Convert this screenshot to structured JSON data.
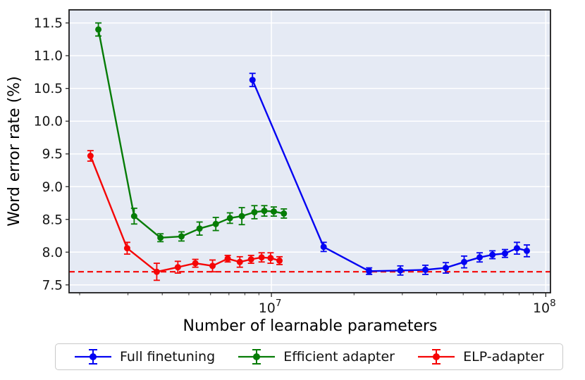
{
  "figure": {
    "ylabel": "Word error rate (%)",
    "xlabel": "Number of learnable parameters"
  },
  "legend": {
    "items": [
      {
        "label": "Full finetuning",
        "color": "#0404f2"
      },
      {
        "label": "Efficient adapter",
        "color": "#067c06"
      },
      {
        "label": "ELP-adapter",
        "color": "#f50505"
      }
    ]
  },
  "chart_data": {
    "type": "line",
    "x_scale": "log",
    "title": "",
    "xlabel": "Number of learnable parameters",
    "ylabel": "Word error rate (%)",
    "xlim": [
      1830000,
      104000000
    ],
    "ylim": [
      7.38,
      11.7
    ],
    "y_ticks": [
      7.5,
      8.0,
      8.5,
      9.0,
      9.5,
      10.0,
      10.5,
      11.0,
      11.5
    ],
    "x_major_ticks": [
      {
        "value": 10000000,
        "base": "10",
        "exp": "7"
      },
      {
        "value": 100000000,
        "base": "10",
        "exp": "8"
      }
    ],
    "x_minor_tick_decades": [
      1000000,
      10000000,
      100000000
    ],
    "grid": true,
    "plot_background": "#e5eaf4",
    "gridline_color": "#ffffff",
    "baseline": {
      "y": 7.7,
      "color": "#f50505",
      "style": "dashed"
    },
    "series": [
      {
        "name": "Full finetuning",
        "color": "#0404f2",
        "x": [
          8530000,
          15500000,
          22700000,
          29500000,
          36400000,
          43200000,
          50400000,
          57400000,
          63900000,
          71000000,
          78500000,
          85300000
        ],
        "y": [
          10.63,
          8.08,
          7.71,
          7.72,
          7.73,
          7.76,
          7.85,
          7.92,
          7.96,
          7.98,
          8.06,
          8.02
        ],
        "yerr": [
          0.1,
          0.07,
          0.05,
          0.07,
          0.07,
          0.08,
          0.09,
          0.07,
          0.06,
          0.06,
          0.09,
          0.09
        ]
      },
      {
        "name": "Efficient adapter",
        "color": "#067c06",
        "x": [
          2340000,
          3160000,
          3940000,
          4700000,
          5470000,
          6270000,
          7060000,
          7800000,
          8670000,
          9420000,
          10200000,
          11100000
        ],
        "y": [
          11.4,
          8.55,
          8.22,
          8.24,
          8.36,
          8.43,
          8.52,
          8.55,
          8.61,
          8.63,
          8.62,
          8.59
        ],
        "yerr": [
          0.1,
          0.12,
          0.06,
          0.07,
          0.1,
          0.1,
          0.08,
          0.13,
          0.1,
          0.08,
          0.07,
          0.07
        ]
      },
      {
        "name": "ELP-adapter",
        "color": "#f50505",
        "x": [
          2190000,
          2980000,
          3820000,
          4560000,
          5280000,
          6100000,
          6930000,
          7670000,
          8430000,
          9210000,
          9930000,
          10700000
        ],
        "y": [
          9.47,
          8.06,
          7.7,
          7.77,
          7.83,
          7.79,
          7.9,
          7.85,
          7.89,
          7.92,
          7.91,
          7.87
        ],
        "yerr": [
          0.08,
          0.09,
          0.13,
          0.09,
          0.06,
          0.09,
          0.05,
          0.08,
          0.06,
          0.07,
          0.08,
          0.06
        ]
      }
    ]
  }
}
